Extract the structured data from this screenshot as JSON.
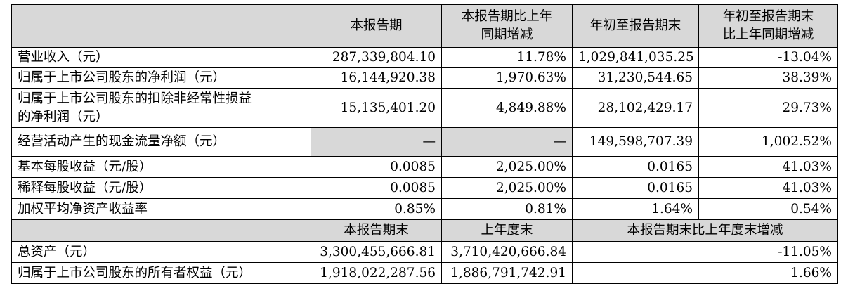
{
  "header": {
    "c1": "本报告期",
    "c2_line1": "本报告期比上年",
    "c2_line2": "同期增减",
    "c3": "年初至报告期末",
    "c4_line1": "年初至报告期末",
    "c4_line2": "比上年同期增减"
  },
  "rows": [
    {
      "label": "营业收入（元）",
      "v1": "287,339,804.10",
      "v2": "11.78%",
      "v3": "1,029,841,035.25",
      "v4": "-13.04%"
    },
    {
      "label": "归属于上市公司股东的净利润（元）",
      "v1": "16,144,920.38",
      "v2": "1,970.63%",
      "v3": "31,230,544.65",
      "v4": "38.39%"
    },
    {
      "label_line1": "归属于上市公司股东的扣除非经常性损益",
      "label_line2": "的净利润（元）",
      "v1": "15,135,401.20",
      "v2": "4,849.88%",
      "v3": "28,102,429.17",
      "v4": "29.73%"
    },
    {
      "label": "经营活动产生的现金流量净额（元）",
      "v1": "—",
      "v2": "—",
      "v3": "149,598,707.39",
      "v4": "1,002.52%"
    },
    {
      "label": "基本每股收益（元/股）",
      "v1": "0.0085",
      "v2": "2,025.00%",
      "v3": "0.0165",
      "v4": "41.03%"
    },
    {
      "label": "稀释每股收益（元/股）",
      "v1": "0.0085",
      "v2": "2,025.00%",
      "v3": "0.0165",
      "v4": "41.03%"
    },
    {
      "label": "加权平均净资产收益率",
      "v1": "0.85%",
      "v2": "0.81%",
      "v3": "1.64%",
      "v4": "0.54%"
    }
  ],
  "header2": {
    "c1": "本报告期末",
    "c2": "上年度末",
    "c3": "本报告期末比上年度末增减"
  },
  "rows2": [
    {
      "label": "总资产（元）",
      "v1": "3,300,455,666.81",
      "v2": "3,710,420,666.84",
      "v3": "-11.05%"
    },
    {
      "label": "归属于上市公司股东的所有者权益（元）",
      "v1": "1,918,022,287.56",
      "v2": "1,886,791,742.91",
      "v3": "1.66%"
    }
  ]
}
